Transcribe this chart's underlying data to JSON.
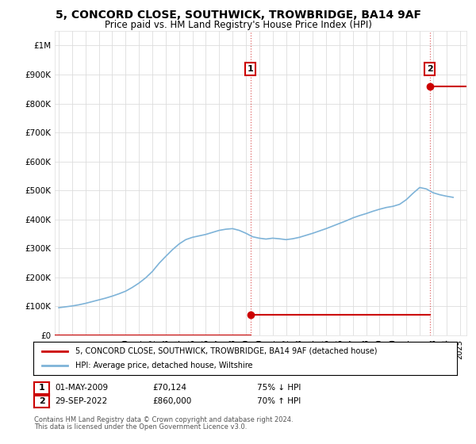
{
  "title": "5, CONCORD CLOSE, SOUTHWICK, TROWBRIDGE, BA14 9AF",
  "subtitle": "Price paid vs. HM Land Registry's House Price Index (HPI)",
  "title_fontsize": 10,
  "subtitle_fontsize": 8.5,
  "bg_color": "#ffffff",
  "grid_color": "#dddddd",
  "hpi_color": "#7eb3d8",
  "sale_color": "#cc0000",
  "dashed_line_color": "#cc0000",
  "ylim": [
    0,
    1050000
  ],
  "xlim_start": 1994.7,
  "xlim_end": 2025.5,
  "sale1_x": 2009.33,
  "sale1_y": 70124,
  "sale1_label": "1",
  "sale1_date": "01-MAY-2009",
  "sale1_price": "£70,124",
  "sale1_hpi": "75% ↓ HPI",
  "sale2_x": 2022.75,
  "sale2_y": 860000,
  "sale2_label": "2",
  "sale2_date": "29-SEP-2022",
  "sale2_price": "£860,000",
  "sale2_hpi": "70% ↑ HPI",
  "legend_line1": "5, CONCORD CLOSE, SOUTHWICK, TROWBRIDGE, BA14 9AF (detached house)",
  "legend_line2": "HPI: Average price, detached house, Wiltshire",
  "footer1": "Contains HM Land Registry data © Crown copyright and database right 2024.",
  "footer2": "This data is licensed under the Open Government Licence v3.0.",
  "yticks": [
    0,
    100000,
    200000,
    300000,
    400000,
    500000,
    600000,
    700000,
    800000,
    900000,
    1000000
  ],
  "ytick_labels": [
    "£0",
    "£100K",
    "£200K",
    "£300K",
    "£400K",
    "£500K",
    "£600K",
    "£700K",
    "£800K",
    "£900K",
    "£1M"
  ],
  "hpi_data_x": [
    1995,
    1995.5,
    1996,
    1996.5,
    1997,
    1997.5,
    1998,
    1998.5,
    1999,
    1999.5,
    2000,
    2000.5,
    2001,
    2001.5,
    2002,
    2002.5,
    2003,
    2003.5,
    2004,
    2004.5,
    2005,
    2005.5,
    2006,
    2006.5,
    2007,
    2007.5,
    2008,
    2008.5,
    2009,
    2009.5,
    2010,
    2010.5,
    2011,
    2011.5,
    2012,
    2012.5,
    2013,
    2013.5,
    2014,
    2014.5,
    2015,
    2015.5,
    2016,
    2016.5,
    2017,
    2017.5,
    2018,
    2018.5,
    2019,
    2019.5,
    2020,
    2020.5,
    2021,
    2021.5,
    2022,
    2022.5,
    2023,
    2023.5,
    2024,
    2024.5
  ],
  "hpi_data_y": [
    95000,
    98000,
    101000,
    105000,
    110000,
    116000,
    122000,
    128000,
    135000,
    143000,
    152000,
    165000,
    180000,
    198000,
    220000,
    248000,
    272000,
    295000,
    315000,
    330000,
    338000,
    343000,
    348000,
    355000,
    362000,
    366000,
    368000,
    362000,
    352000,
    340000,
    335000,
    332000,
    335000,
    333000,
    330000,
    333000,
    338000,
    345000,
    352000,
    360000,
    368000,
    377000,
    386000,
    395000,
    405000,
    413000,
    420000,
    428000,
    435000,
    441000,
    445000,
    452000,
    468000,
    490000,
    510000,
    505000,
    492000,
    485000,
    480000,
    476000
  ]
}
